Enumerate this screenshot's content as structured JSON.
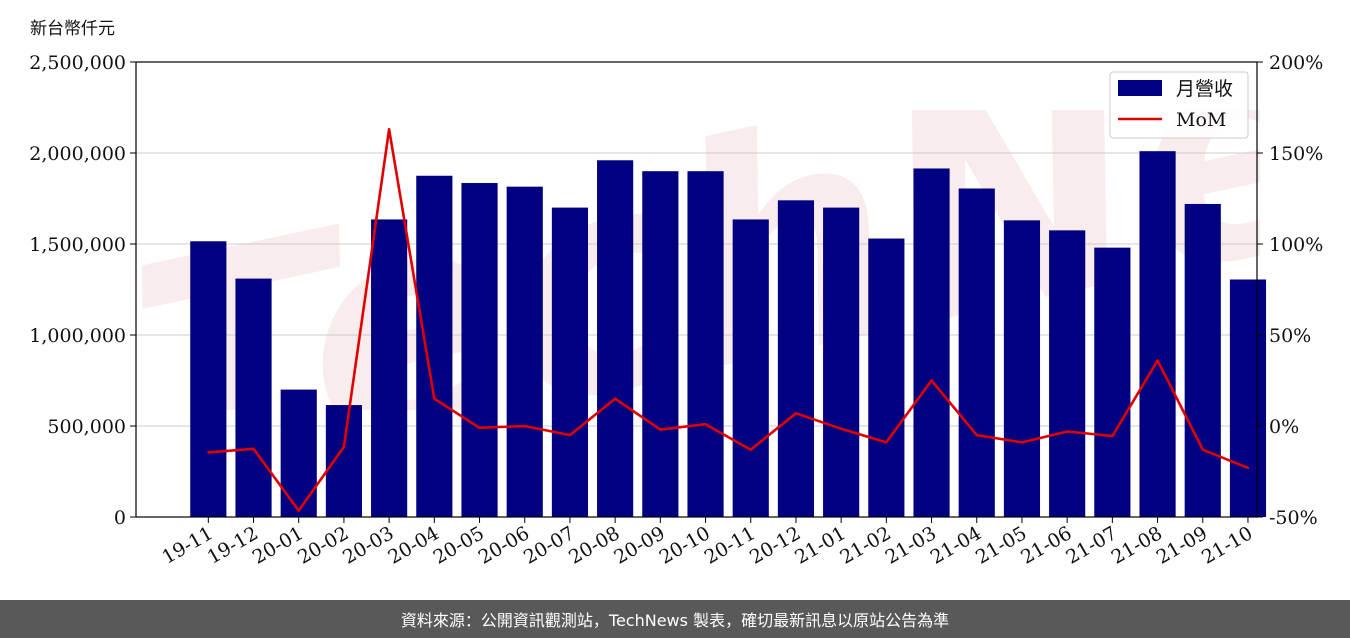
{
  "unit_label": "新台幣仟元",
  "footer_text": "資料來源：公開資訊觀測站，TechNews 製表，確切最新訊息以原站公告為準",
  "colors": {
    "bar": "#000080",
    "line": "#e00000",
    "grid": "#cccccc",
    "footer_bg": "#595959"
  },
  "chart_data": {
    "type": "bar",
    "categories": [
      "19-11",
      "19-12",
      "20-01",
      "20-02",
      "20-03",
      "20-04",
      "20-05",
      "20-06",
      "20-07",
      "20-08",
      "20-09",
      "20-10",
      "20-11",
      "20-12",
      "21-01",
      "21-02",
      "21-03",
      "21-04",
      "21-05",
      "21-06",
      "21-07",
      "21-08",
      "21-09",
      "21-10"
    ],
    "series": [
      {
        "name": "月營收",
        "type": "bar",
        "axis": "left",
        "values": [
          1515000,
          1310000,
          700000,
          615000,
          1635000,
          1875000,
          1835000,
          1815000,
          1700000,
          1960000,
          1900000,
          1900000,
          1635000,
          1740000,
          1700000,
          1530000,
          1915000,
          1805000,
          1630000,
          1575000,
          1480000,
          2010000,
          1720000,
          1305000
        ]
      },
      {
        "name": "MoM",
        "type": "line",
        "axis": "right",
        "values": [
          -14.5,
          -12.5,
          -46.5,
          -11.5,
          163,
          15,
          -1,
          0,
          -5,
          15,
          -2,
          1,
          -13,
          7,
          -1.5,
          -9,
          25,
          -5,
          -9,
          -3,
          -5.5,
          36,
          -13,
          -23
        ]
      }
    ],
    "y_left": {
      "ylim": [
        0,
        2500000
      ],
      "ticks": [
        "0",
        "500,000",
        "1,000,000",
        "1,500,000",
        "2,000,000",
        "2,500,000"
      ]
    },
    "y_right": {
      "ylim": [
        -50,
        200
      ],
      "ticks": [
        "-50%",
        "0%",
        "50%",
        "100%",
        "150%",
        "200%"
      ]
    },
    "grid": true,
    "legend": "top-right"
  }
}
